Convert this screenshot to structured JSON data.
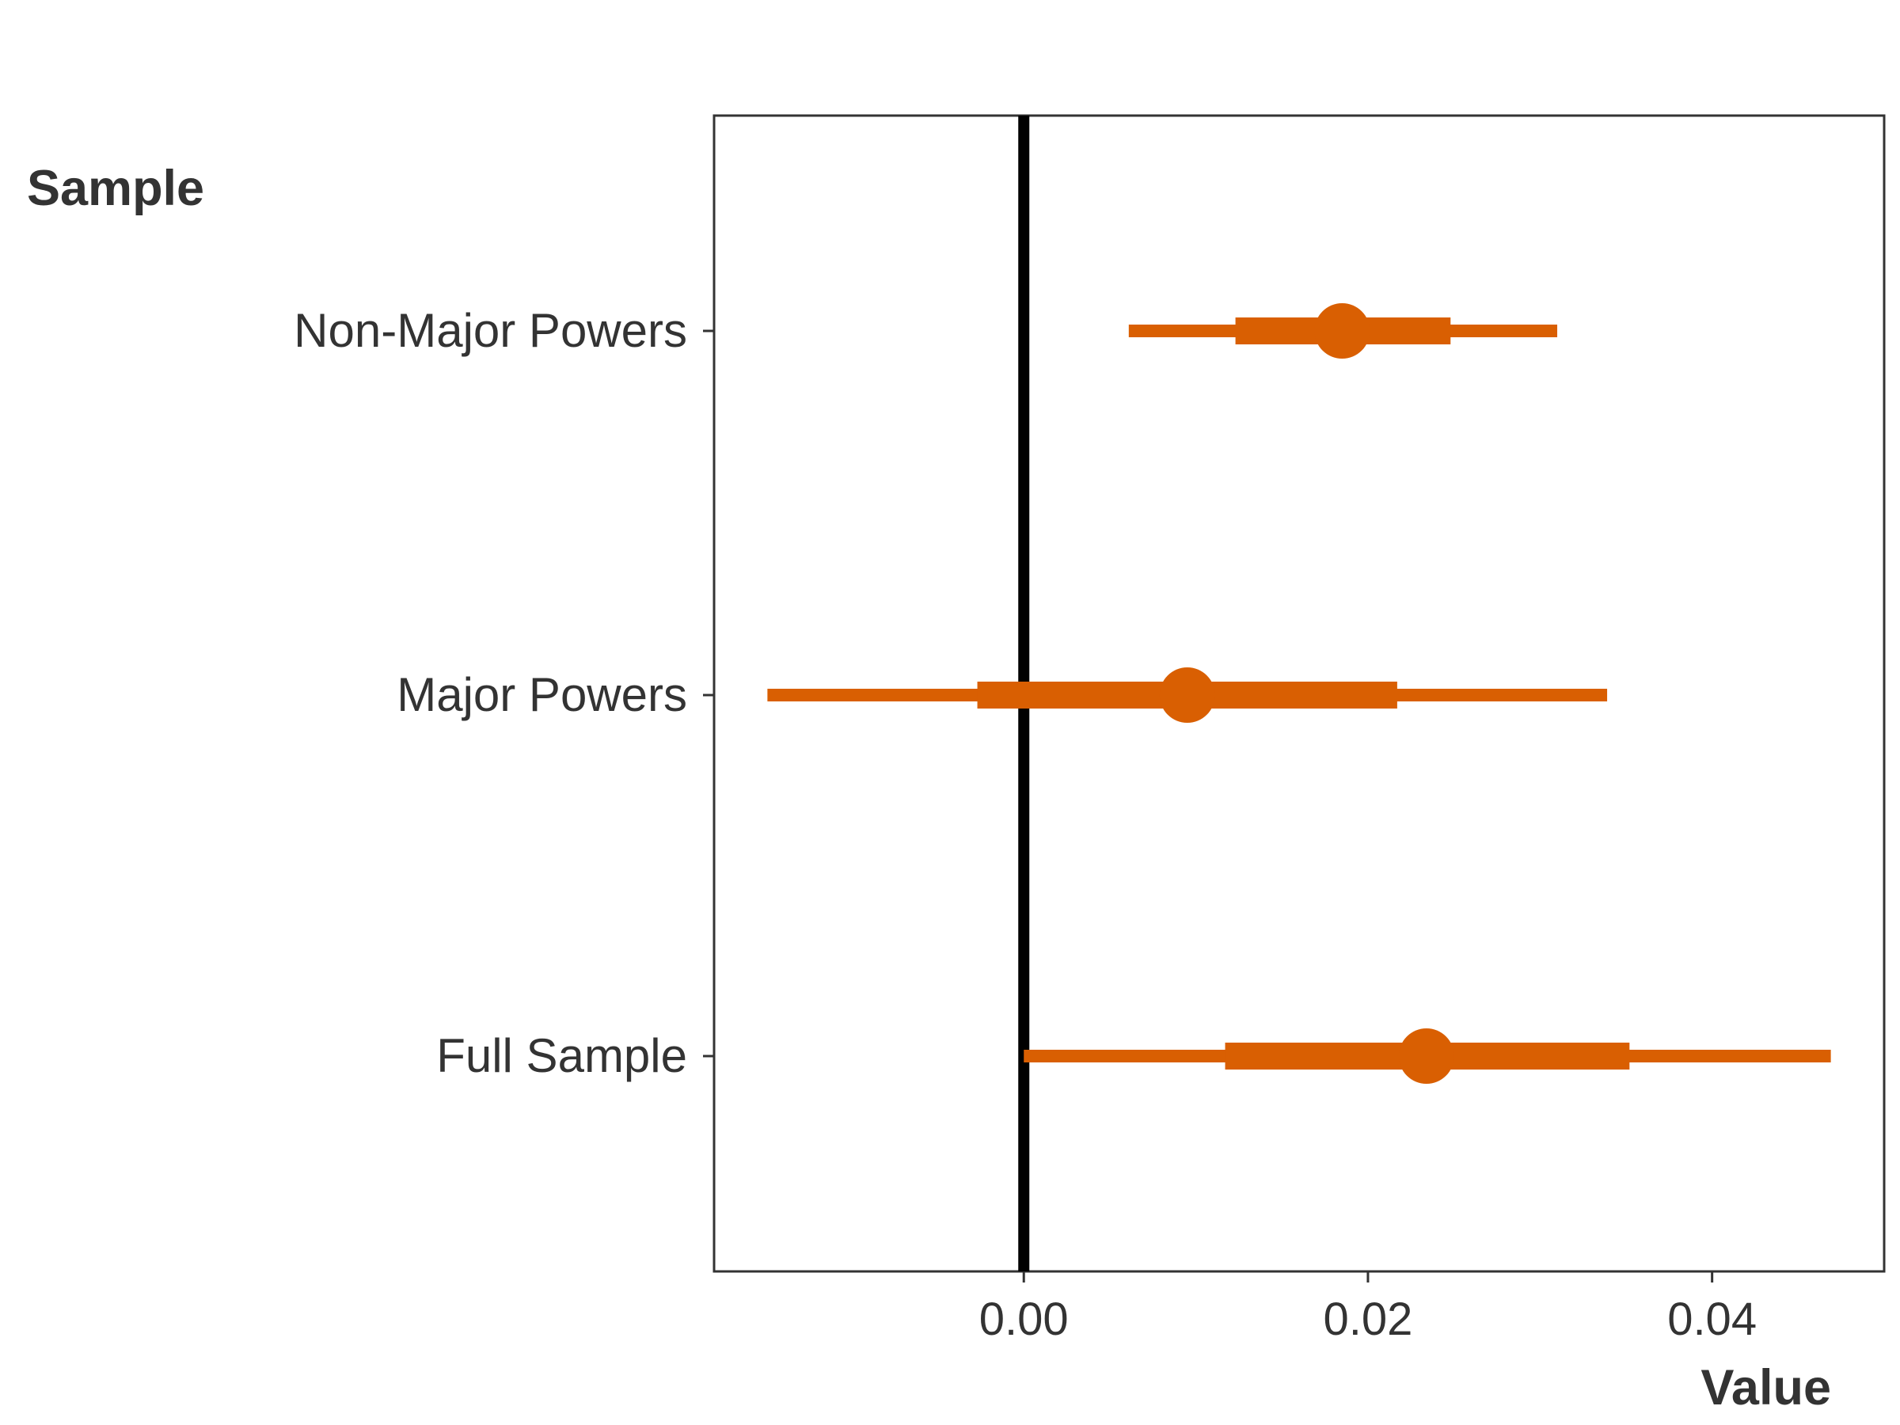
{
  "chart_data": {
    "type": "coefficient_plot",
    "ylabel": "Sample",
    "xlabel": "Value",
    "xlim": [
      -0.018,
      0.05
    ],
    "xticks": [
      0.0,
      0.02,
      0.04
    ],
    "xtick_labels": [
      "0.00",
      "0.02",
      "0.04"
    ],
    "reference_line_x": 0.0,
    "grid": false,
    "color": "#d95f02",
    "categories": [
      "Non-Major Powers",
      "Major Powers",
      "Full Sample"
    ],
    "estimates": [
      {
        "label": "Non-Major Powers",
        "estimate": 0.0185,
        "inner_low": 0.0123,
        "inner_high": 0.0248,
        "outer_low": 0.0061,
        "outer_high": 0.031
      },
      {
        "label": "Major Powers",
        "estimate": 0.0095,
        "inner_low": -0.0027,
        "inner_high": 0.0217,
        "outer_low": -0.0149,
        "outer_high": 0.0339
      },
      {
        "label": "Full Sample",
        "estimate": 0.0234,
        "inner_low": 0.0117,
        "inner_high": 0.0352,
        "outer_low": 0.0,
        "outer_high": 0.0469
      }
    ]
  }
}
